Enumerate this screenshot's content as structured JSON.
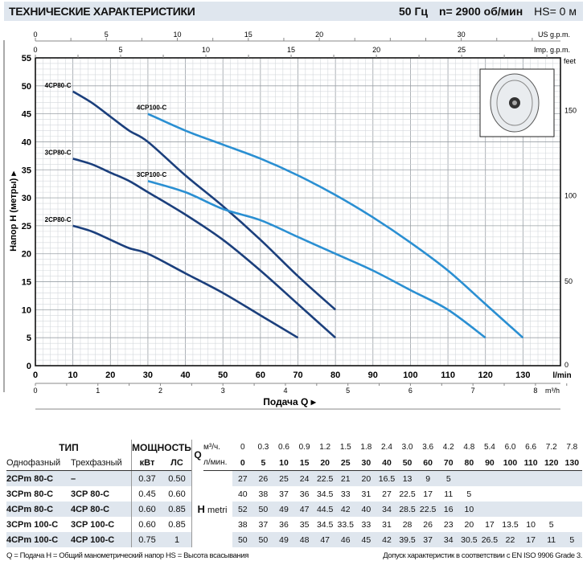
{
  "header": {
    "title": "ТЕХНИЧЕСКИЕ ХАРАКТЕРИСТИКИ",
    "freq": "50 Гц",
    "speed": "n= 2900 об/мин",
    "hs": "HS= 0 м"
  },
  "chart_data": {
    "type": "line",
    "title": "ТЕХНИЧЕСКИЕ ХАРАКТЕРИСТИКИ",
    "xlabel": "Подача Q",
    "ylabel": "Напор H (метры)",
    "xlim": [
      0,
      140
    ],
    "ylim": [
      0,
      55
    ],
    "x_ticks": [
      0,
      10,
      20,
      30,
      40,
      50,
      60,
      70,
      80,
      90,
      100,
      110,
      120,
      130
    ],
    "x_unit": "l/min",
    "y_ticks": [
      0,
      5,
      10,
      15,
      20,
      25,
      30,
      35,
      40,
      45,
      50,
      55
    ],
    "feet_ticks": [
      0,
      50,
      100,
      150
    ],
    "feet_unit": "feet",
    "us_gpm_ticks": [
      0,
      5,
      10,
      15,
      20,
      30
    ],
    "us_gpm_unit": "US g.p.m.",
    "imp_gpm_ticks": [
      0,
      5,
      10,
      15,
      20,
      25
    ],
    "imp_gpm_unit": "Imp. g.p.m.",
    "m3h_ticks": [
      0,
      1,
      2,
      3,
      4,
      5,
      6,
      7,
      8
    ],
    "m3h_unit": "m³/h",
    "grid": true,
    "series": [
      {
        "name": "2CP80-C",
        "color": "#1b3f7c",
        "x": [
          10,
          15,
          20,
          25,
          30,
          40,
          50,
          60,
          70
        ],
        "y": [
          25,
          24,
          22.5,
          21,
          20,
          16.5,
          13,
          9,
          5
        ]
      },
      {
        "name": "3CP80-C",
        "color": "#1b3f7c",
        "x": [
          10,
          15,
          20,
          25,
          30,
          40,
          50,
          60,
          70,
          80
        ],
        "y": [
          37,
          36,
          34.5,
          33,
          31,
          27,
          22.5,
          17,
          11,
          5
        ]
      },
      {
        "name": "4CP80-C",
        "color": "#1b3f7c",
        "x": [
          10,
          15,
          20,
          25,
          30,
          40,
          50,
          60,
          70,
          80
        ],
        "y": [
          49,
          47,
          44.5,
          42,
          40,
          34,
          28.5,
          22.5,
          16,
          10
        ]
      },
      {
        "name": "3CP100-C",
        "color": "#2a8fd2",
        "x": [
          30,
          40,
          50,
          60,
          70,
          80,
          90,
          100,
          110,
          120
        ],
        "y": [
          33,
          31,
          28,
          26,
          23,
          20,
          17,
          13.5,
          10,
          5
        ]
      },
      {
        "name": "4CP100-C",
        "color": "#2a8fd2",
        "x": [
          30,
          40,
          50,
          60,
          70,
          80,
          90,
          100,
          110,
          120,
          130
        ],
        "y": [
          45,
          42,
          39.5,
          37,
          34,
          30.5,
          26.5,
          22,
          17,
          11,
          5
        ]
      }
    ]
  },
  "table": {
    "h_type": "ТИП",
    "h_power": "МОЩНОСТЬ",
    "h_q": "Q",
    "h_m3h": "м³/ч.",
    "h_lmin": "л/мин.",
    "h_single": "Однофазный",
    "h_three": "Трехфазный",
    "h_kw": "кВт",
    "h_hp": "ЛС",
    "h_H": "H",
    "h_metri": "metri",
    "m3h": [
      "0",
      "0.3",
      "0.6",
      "0.9",
      "1.2",
      "1.5",
      "1.8",
      "2.4",
      "3.0",
      "3.6",
      "4.2",
      "4.8",
      "5.4",
      "6.0",
      "6.6",
      "7.2",
      "7.8"
    ],
    "lmin": [
      "0",
      "5",
      "10",
      "15",
      "20",
      "25",
      "30",
      "40",
      "50",
      "60",
      "70",
      "80",
      "90",
      "100",
      "110",
      "120",
      "130"
    ],
    "rows": [
      {
        "single": "2CPm 80-C",
        "three": "–",
        "kw": "0.37",
        "hp": "0.50",
        "h": [
          "27",
          "26",
          "25",
          "24",
          "22.5",
          "21",
          "20",
          "16.5",
          "13",
          "9",
          "5",
          "",
          "",
          "",
          "",
          "",
          ""
        ]
      },
      {
        "single": "3CPm 80-C",
        "three": "3CP 80-C",
        "kw": "0.45",
        "hp": "0.60",
        "h": [
          "40",
          "38",
          "37",
          "36",
          "34.5",
          "33",
          "31",
          "27",
          "22.5",
          "17",
          "11",
          "5",
          "",
          "",
          "",
          "",
          ""
        ]
      },
      {
        "single": "4CPm 80-C",
        "three": "4CP 80-C",
        "kw": "0.60",
        "hp": "0.85",
        "h": [
          "52",
          "50",
          "49",
          "47",
          "44.5",
          "42",
          "40",
          "34",
          "28.5",
          "22.5",
          "16",
          "10",
          "",
          "",
          "",
          "",
          ""
        ]
      },
      {
        "single": "3CPm 100-C",
        "three": "3CP 100-C",
        "kw": "0.60",
        "hp": "0.85",
        "h": [
          "38",
          "37",
          "36",
          "35",
          "34.5",
          "33.5",
          "33",
          "31",
          "28",
          "26",
          "23",
          "20",
          "17",
          "13.5",
          "10",
          "5",
          ""
        ]
      },
      {
        "single": "4CPm 100-C",
        "three": "4CP 100-C",
        "kw": "0.75",
        "hp": "1",
        "h": [
          "50",
          "50",
          "49",
          "48",
          "47",
          "46",
          "45",
          "42",
          "39.5",
          "37",
          "34",
          "30.5",
          "26.5",
          "22",
          "17",
          "11",
          "5"
        ]
      }
    ]
  },
  "footer": {
    "left": "Q = Подача   H = Общий манометрический напор   HS = Высота всасывания",
    "right": "Допуск характеристик в соответствии с EN ISO 9906 Grade 3."
  }
}
